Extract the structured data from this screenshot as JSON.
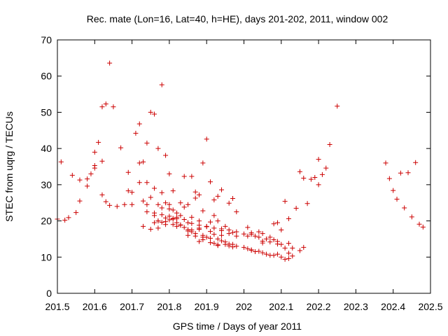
{
  "chart_data": {
    "type": "scatter",
    "title": "Rec. mate (Lon=16, Lat=40, h=HE), days 201-202, 2011, window 002",
    "xlabel": "GPS time / Days of year 2011",
    "ylabel": "STEC from uqrg / TECUs",
    "xlim": [
      201.5,
      202.5
    ],
    "ylim": [
      0,
      70
    ],
    "xticks": [
      "201.5",
      "201.6",
      "201.7",
      "201.8",
      "201.9",
      "202",
      "202.1",
      "202.2",
      "202.3",
      "202.4",
      "202.5"
    ],
    "yticks": [
      "0",
      "10",
      "20",
      "30",
      "40",
      "50",
      "60",
      "70"
    ],
    "grid": false,
    "marker": "+",
    "color": "#cc0000",
    "x": [
      201.5,
      201.51,
      201.52,
      201.53,
      201.54,
      201.55,
      201.56,
      201.56,
      201.58,
      201.58,
      201.59,
      201.6,
      201.6,
      201.6,
      201.61,
      201.62,
      201.62,
      201.63,
      201.64,
      201.65,
      201.67,
      201.69,
      201.69,
      201.7,
      201.71,
      201.72,
      201.72,
      201.73,
      201.74,
      201.74,
      201.75,
      201.76,
      201.77,
      201.78,
      201.79,
      201.8,
      201.81,
      201.83,
      201.84,
      201.86,
      201.87,
      201.88,
      201.89,
      201.9,
      201.91,
      201.92,
      201.93,
      201.94,
      201.96,
      201.97,
      201.98,
      202.01,
      202.02,
      202.04,
      202.05,
      202.07,
      202.08,
      202.09,
      202.1,
      202.11,
      202.12,
      202.14,
      202.15,
      202.16,
      202.17,
      202.18,
      202.19,
      202.2,
      202.2,
      202.21,
      202.22,
      202.23,
      202.25,
      202.38,
      202.39,
      202.4,
      202.41,
      202.42,
      202.43,
      202.44,
      202.45,
      202.46,
      202.47,
      202.48,
      201.62,
      201.63,
      201.64,
      201.66,
      201.68,
      201.7,
      201.72,
      201.73,
      201.74,
      201.75,
      201.76,
      201.77,
      201.78,
      201.79,
      201.8,
      201.81,
      201.82,
      201.83,
      201.84,
      201.85,
      201.86,
      201.87,
      201.88,
      201.89,
      201.9,
      201.91,
      201.92,
      201.93,
      201.94,
      201.95,
      201.96,
      201.97,
      201.98,
      202.0,
      202.01,
      202.02,
      202.03,
      202.04,
      202.05,
      202.06,
      202.07,
      202.08,
      202.09,
      202.1,
      202.11,
      202.12,
      202.13,
      202.15,
      201.73,
      201.75,
      201.76,
      201.77,
      201.78,
      201.79,
      201.8,
      201.81,
      201.82,
      201.83,
      201.84,
      201.85,
      201.86,
      201.87,
      201.88,
      201.89,
      201.9,
      201.91,
      201.92,
      201.93,
      201.94,
      201.95,
      201.96,
      201.97,
      201.98,
      202.0,
      202.01,
      202.02,
      202.03,
      202.04,
      202.05,
      202.06,
      202.07,
      202.08,
      202.09,
      202.1,
      202.11,
      202.12,
      202.13,
      201.74,
      201.76,
      201.78,
      201.8,
      201.82,
      201.84,
      201.86,
      201.88,
      201.9,
      201.92,
      201.94,
      201.96,
      201.98,
      201.77,
      201.79,
      201.81,
      201.83,
      201.85,
      201.87,
      201.89,
      201.91,
      201.93,
      201.95,
      201.97,
      201.78,
      201.8,
      201.82,
      201.85,
      201.88,
      201.91,
      201.94,
      201.76,
      201.79,
      201.82,
      201.86,
      201.89,
      201.93,
      201.77,
      201.81,
      201.85,
      201.88,
      201.92,
      201.96,
      202.02,
      202.05,
      202.09,
      202.12,
      202.16
    ],
    "y": [
      20.5,
      36.3,
      20.2,
      20.9,
      32.6,
      22.3,
      31.3,
      25.5,
      31.6,
      29.6,
      33.0,
      35.3,
      34.6,
      39.0,
      41.7,
      36.5,
      51.5,
      52.3,
      63.6,
      51.5,
      40.2,
      33.4,
      28.3,
      24.5,
      44.2,
      46.8,
      36.0,
      36.3,
      30.6,
      41.5,
      50.0,
      49.5,
      40.0,
      57.6,
      38.1,
      33.0,
      28.3,
      25.0,
      32.3,
      32.3,
      28.0,
      27.2,
      36.0,
      42.6,
      30.8,
      25.8,
      26.8,
      28.6,
      24.9,
      26.2,
      22.5,
      18.2,
      16.7,
      17.0,
      16.5,
      15.5,
      19.2,
      19.5,
      17.5,
      25.4,
      20.6,
      23.5,
      33.6,
      31.8,
      24.8,
      31.5,
      32.0,
      30.0,
      37.0,
      32.8,
      34.6,
      41.1,
      51.7,
      36.0,
      31.7,
      28.4,
      26.0,
      33.2,
      23.6,
      33.3,
      21.1,
      36.1,
      19.1,
      18.3,
      27.2,
      25.3,
      24.3,
      24.0,
      24.5,
      27.9,
      30.6,
      25.5,
      24.5,
      26.5,
      29.0,
      24.5,
      27.8,
      25.0,
      24.5,
      23.0,
      22.2,
      21.5,
      23.8,
      24.5,
      21.0,
      26.3,
      20.0,
      22.8,
      18.5,
      19.7,
      21.5,
      20.0,
      17.8,
      18.5,
      17.5,
      16.8,
      17.0,
      16.4,
      15.8,
      16.3,
      15.8,
      15.5,
      14.4,
      15.0,
      14.2,
      14.8,
      14.3,
      13.5,
      12.5,
      13.8,
      12.5,
      11.8,
      18.5,
      17.7,
      19.5,
      20.0,
      19.6,
      19.8,
      20.3,
      20.5,
      19.5,
      18.8,
      18.2,
      17.6,
      17.0,
      16.5,
      17.7,
      16.0,
      15.5,
      15.2,
      16.3,
      15.0,
      14.5,
      14.2,
      13.6,
      13.5,
      13.0,
      12.7,
      12.3,
      11.9,
      11.5,
      11.6,
      11.2,
      10.8,
      10.5,
      10.5,
      10.8,
      10.0,
      9.4,
      9.6,
      10.3,
      22.5,
      21.5,
      21.7,
      21.3,
      20.6,
      20.4,
      19.3,
      18.8,
      18.4,
      18.0,
      17.3,
      16.5,
      15.8,
      18.0,
      19.0,
      20.7,
      18.9,
      17.2,
      15.8,
      14.8,
      14.0,
      13.4,
      13.5,
      12.8,
      23.6,
      23.3,
      21.0,
      19.5,
      18.0,
      17.1,
      16.0,
      22.2,
      20.8,
      18.5,
      17.5,
      15.5,
      13.2,
      20.0,
      19.0,
      16.0,
      14.3,
      13.8,
      13.1,
      12.0,
      13.9,
      13.6,
      11.1,
      12.7
    ]
  }
}
